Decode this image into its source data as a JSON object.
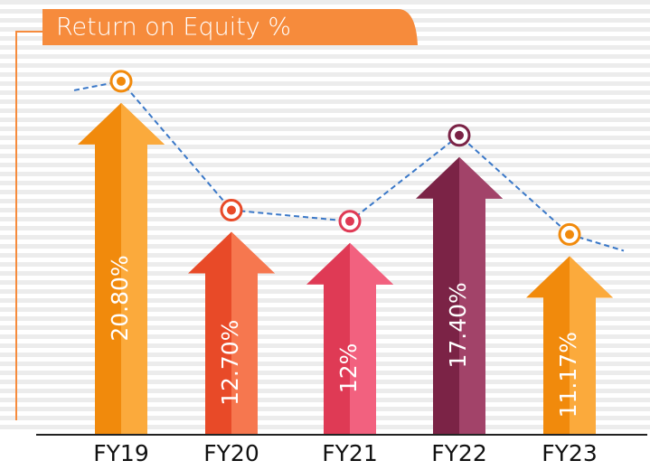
{
  "chart_data": {
    "type": "arrow-bar",
    "title": "Return on Equity %",
    "categories": [
      "FY19",
      "FY20",
      "FY21",
      "FY22",
      "FY23"
    ],
    "values": [
      20.8,
      12.7,
      12,
      17.4,
      11.17
    ],
    "value_labels": [
      "20.80%",
      "12.70%",
      "12%",
      "17.40%",
      "11.17%"
    ],
    "colors": [
      [
        "#f18a0c",
        "#fbaa3c"
      ],
      [
        "#e84a28",
        "#f6774f"
      ],
      [
        "#df3a55",
        "#f2617f"
      ],
      [
        "#7b2346",
        "#a24369"
      ],
      [
        "#f18a0c",
        "#fbaa3c"
      ]
    ],
    "trend_line": true
  }
}
